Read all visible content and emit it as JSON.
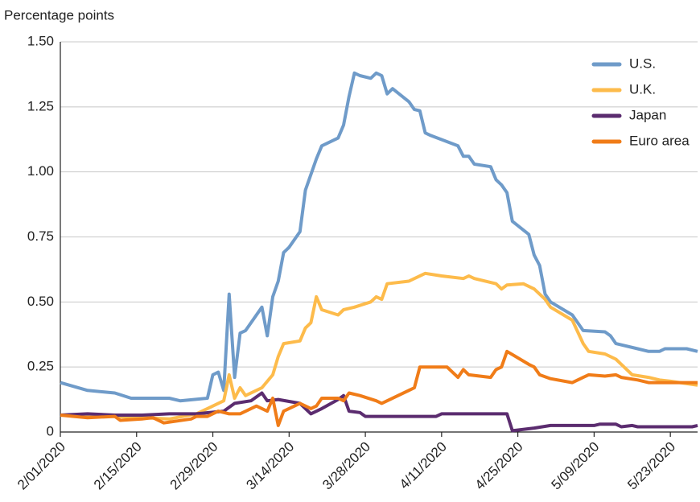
{
  "chart_data": {
    "type": "line",
    "y_label": "Percentage points",
    "xlim": [
      "2020-02-01",
      "2020-05-28"
    ],
    "xticks": [
      {
        "value": "2020-02-01",
        "label": "2/01/2020"
      },
      {
        "value": "2020-02-15",
        "label": "2/15/2020"
      },
      {
        "value": "2020-02-29",
        "label": "2/29/2020"
      },
      {
        "value": "2020-03-14",
        "label": "3/14/2020"
      },
      {
        "value": "2020-03-28",
        "label": "3/28/2020"
      },
      {
        "value": "2020-04-11",
        "label": "4/11/2020"
      },
      {
        "value": "2020-04-25",
        "label": "4/25/2020"
      },
      {
        "value": "2020-05-09",
        "label": "5/09/2020"
      },
      {
        "value": "2020-05-23",
        "label": "5/23/2020"
      }
    ],
    "ylim": [
      0,
      1.5
    ],
    "yticks": [
      0,
      0.25,
      {
        "value": 0.5,
        "label": "0.50"
      },
      0.75,
      {
        "value": 1,
        "label": "1.00"
      },
      1.25,
      {
        "value": 1.5,
        "label": "1.50"
      }
    ],
    "grid": true,
    "legend": "upper right",
    "series": [
      {
        "name": "U.S.",
        "color": "#6f9bc9",
        "x": [
          "2020-02-01",
          "2020-02-06",
          "2020-02-11",
          "2020-02-14",
          "2020-02-18",
          "2020-02-21",
          "2020-02-23",
          "2020-02-28",
          "2020-02-29",
          "2020-03-01",
          "2020-03-02",
          "2020-03-03",
          "2020-03-04",
          "2020-03-05",
          "2020-03-06",
          "2020-03-09",
          "2020-03-10",
          "2020-03-11",
          "2020-03-12",
          "2020-03-13",
          "2020-03-14",
          "2020-03-16",
          "2020-03-17",
          "2020-03-19",
          "2020-03-20",
          "2020-03-23",
          "2020-03-24",
          "2020-03-25",
          "2020-03-26",
          "2020-03-27",
          "2020-03-29",
          "2020-03-30",
          "2020-03-31",
          "2020-04-01",
          "2020-04-02",
          "2020-04-05",
          "2020-04-06",
          "2020-04-07",
          "2020-04-08",
          "2020-04-09",
          "2020-04-14",
          "2020-04-15",
          "2020-04-16",
          "2020-04-17",
          "2020-04-20",
          "2020-04-21",
          "2020-04-22",
          "2020-04-23",
          "2020-04-24",
          "2020-04-27",
          "2020-04-28",
          "2020-04-29",
          "2020-04-30",
          "2020-05-01",
          "2020-05-05",
          "2020-05-07",
          "2020-05-11",
          "2020-05-12",
          "2020-05-13",
          "2020-05-17",
          "2020-05-19",
          "2020-05-21",
          "2020-05-22",
          "2020-05-26",
          "2020-05-28"
        ],
        "values": [
          0.19,
          0.16,
          0.15,
          0.13,
          0.13,
          0.13,
          0.12,
          0.13,
          0.22,
          0.23,
          0.16,
          0.53,
          0.21,
          0.38,
          0.39,
          0.48,
          0.37,
          0.52,
          0.58,
          0.69,
          0.71,
          0.77,
          0.93,
          1.05,
          1.1,
          1.13,
          1.18,
          1.29,
          1.38,
          1.37,
          1.36,
          1.38,
          1.37,
          1.3,
          1.32,
          1.27,
          1.24,
          1.235,
          1.15,
          1.14,
          1.1,
          1.06,
          1.06,
          1.03,
          1.02,
          0.97,
          0.95,
          0.92,
          0.81,
          0.76,
          0.68,
          0.64,
          0.53,
          0.5,
          0.45,
          0.39,
          0.385,
          0.37,
          0.34,
          0.32,
          0.31,
          0.31,
          0.32,
          0.32,
          0.31
        ]
      },
      {
        "name": "U.K.",
        "color": "#fdbb4b",
        "x": [
          "2020-02-01",
          "2020-02-11",
          "2020-02-21",
          "2020-02-26",
          "2020-02-28",
          "2020-03-02",
          "2020-03-03",
          "2020-03-04",
          "2020-03-05",
          "2020-03-06",
          "2020-03-09",
          "2020-03-11",
          "2020-03-12",
          "2020-03-13",
          "2020-03-16",
          "2020-03-17",
          "2020-03-18",
          "2020-03-19",
          "2020-03-20",
          "2020-03-23",
          "2020-03-24",
          "2020-03-26",
          "2020-03-29",
          "2020-03-30",
          "2020-03-31",
          "2020-04-01",
          "2020-04-05",
          "2020-04-08",
          "2020-04-11",
          "2020-04-15",
          "2020-04-16",
          "2020-04-17",
          "2020-04-20",
          "2020-04-21",
          "2020-04-22",
          "2020-04-23",
          "2020-04-26",
          "2020-04-28",
          "2020-04-30",
          "2020-05-01",
          "2020-05-05",
          "2020-05-07",
          "2020-05-08",
          "2020-05-11",
          "2020-05-13",
          "2020-05-14",
          "2020-05-16",
          "2020-05-19",
          "2020-05-21",
          "2020-05-23",
          "2020-05-28"
        ],
        "values": [
          0.065,
          0.06,
          0.05,
          0.07,
          0.09,
          0.12,
          0.22,
          0.13,
          0.17,
          0.14,
          0.17,
          0.22,
          0.29,
          0.34,
          0.35,
          0.4,
          0.42,
          0.52,
          0.47,
          0.45,
          0.47,
          0.48,
          0.5,
          0.52,
          0.51,
          0.57,
          0.58,
          0.61,
          0.6,
          0.59,
          0.6,
          0.59,
          0.575,
          0.57,
          0.55,
          0.565,
          0.57,
          0.55,
          0.51,
          0.48,
          0.43,
          0.34,
          0.31,
          0.3,
          0.28,
          0.26,
          0.22,
          0.21,
          0.2,
          0.195,
          0.18
        ]
      },
      {
        "name": "Japan",
        "color": "#5b2c6f",
        "x": [
          "2020-02-01",
          "2020-02-06",
          "2020-02-11",
          "2020-02-16",
          "2020-02-21",
          "2020-02-26",
          "2020-03-02",
          "2020-03-04",
          "2020-03-07",
          "2020-03-09",
          "2020-03-10",
          "2020-03-12",
          "2020-03-16",
          "2020-03-18",
          "2020-03-20",
          "2020-03-23",
          "2020-03-24",
          "2020-03-25",
          "2020-03-27",
          "2020-03-28",
          "2020-04-01",
          "2020-04-06",
          "2020-04-10",
          "2020-04-11",
          "2020-04-23",
          "2020-04-24",
          "2020-04-28",
          "2020-05-01",
          "2020-05-09",
          "2020-05-10",
          "2020-05-13",
          "2020-05-14",
          "2020-05-16",
          "2020-05-17",
          "2020-05-27",
          "2020-05-28"
        ],
        "values": [
          0.065,
          0.07,
          0.065,
          0.065,
          0.07,
          0.07,
          0.08,
          0.11,
          0.12,
          0.15,
          0.12,
          0.125,
          0.11,
          0.07,
          0.09,
          0.125,
          0.14,
          0.08,
          0.075,
          0.06,
          0.06,
          0.06,
          0.06,
          0.07,
          0.07,
          0.005,
          0.015,
          0.025,
          0.025,
          0.03,
          0.03,
          0.02,
          0.025,
          0.02,
          0.02,
          0.025
        ]
      },
      {
        "name": "Euro area",
        "color": "#f07c18",
        "x": [
          "2020-02-01",
          "2020-02-06",
          "2020-02-11",
          "2020-02-12",
          "2020-02-16",
          "2020-02-18",
          "2020-02-20",
          "2020-02-25",
          "2020-02-26",
          "2020-02-28",
          "2020-03-01",
          "2020-03-03",
          "2020-03-05",
          "2020-03-08",
          "2020-03-10",
          "2020-03-11",
          "2020-03-12",
          "2020-03-13",
          "2020-03-16",
          "2020-03-18",
          "2020-03-19",
          "2020-03-20",
          "2020-03-23",
          "2020-03-24",
          "2020-03-25",
          "2020-03-27",
          "2020-03-30",
          "2020-03-31",
          "2020-04-01",
          "2020-04-06",
          "2020-04-07",
          "2020-04-12",
          "2020-04-14",
          "2020-04-15",
          "2020-04-16",
          "2020-04-20",
          "2020-04-21",
          "2020-04-22",
          "2020-04-23",
          "2020-04-27",
          "2020-04-28",
          "2020-04-29",
          "2020-05-01",
          "2020-05-05",
          "2020-05-07",
          "2020-05-08",
          "2020-05-11",
          "2020-05-13",
          "2020-05-14",
          "2020-05-17",
          "2020-05-19",
          "2020-05-21",
          "2020-05-23",
          "2020-05-28"
        ],
        "values": [
          0.065,
          0.055,
          0.06,
          0.045,
          0.05,
          0.055,
          0.035,
          0.05,
          0.06,
          0.06,
          0.08,
          0.07,
          0.07,
          0.1,
          0.08,
          0.13,
          0.025,
          0.08,
          0.11,
          0.09,
          0.1,
          0.13,
          0.13,
          0.12,
          0.15,
          0.14,
          0.12,
          0.11,
          0.12,
          0.17,
          0.25,
          0.25,
          0.21,
          0.24,
          0.22,
          0.21,
          0.24,
          0.25,
          0.31,
          0.26,
          0.25,
          0.22,
          0.205,
          0.19,
          0.21,
          0.22,
          0.215,
          0.22,
          0.21,
          0.2,
          0.19,
          0.19,
          0.19,
          0.19
        ]
      }
    ]
  }
}
